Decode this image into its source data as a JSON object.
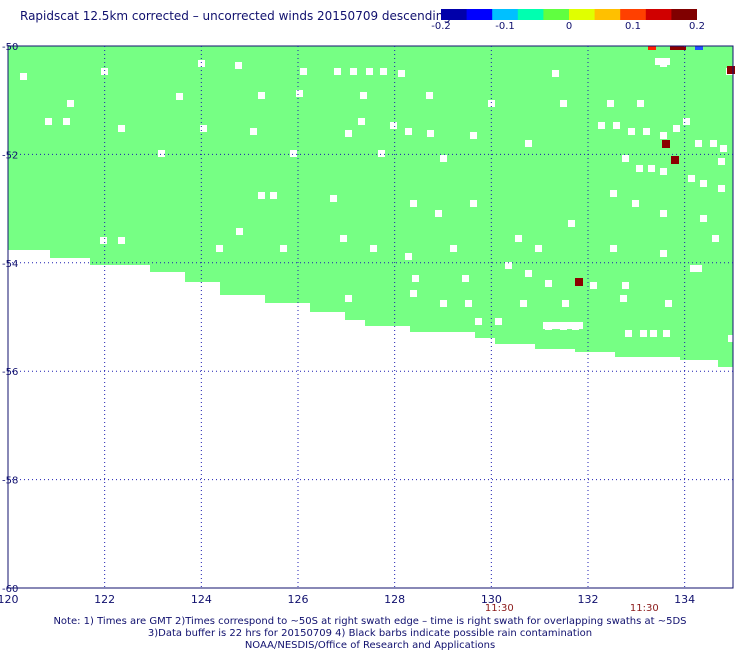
{
  "title": "Rapidscat 12.5km corrected – uncorrected winds 20150709 descending",
  "colorbar": {
    "ticks": [
      "-0.2",
      "-0.1",
      "0",
      "0.1",
      "0.2"
    ],
    "range": [
      -0.2,
      0.2
    ],
    "colors": [
      "#0000aa",
      "#0000ff",
      "#00c0ff",
      "#00ffb0",
      "#60ff40",
      "#e0ff00",
      "#ffc000",
      "#ff4000",
      "#d00000",
      "#800000"
    ]
  },
  "map": {
    "lon_ticks": [
      "120",
      "122",
      "124",
      "126",
      "128",
      "130",
      "132",
      "134"
    ],
    "lat_ticks": [
      "-50",
      "-52",
      "-54",
      "-56",
      "-58",
      "-60"
    ],
    "lon_range": [
      120,
      135
    ],
    "lat_range": [
      -60,
      -50
    ],
    "time_labels": [
      {
        "text": "11:30",
        "lon": 130
      },
      {
        "text": "11:30",
        "lon": 133
      }
    ],
    "swath_color": "#76ff84",
    "grid_color": "#1c1cb0"
  },
  "notes": {
    "line1": "Note: 1) Times are GMT 2)Times correspond to ~50S at right swath edge – time is right swath for overlapping swaths at ~5DS",
    "line2": "3)Data buffer is 22 hrs for 20150709 4) Black barbs indicate possible rain contamination",
    "line3": "NOAA/NESDIS/Office of Research and Applications"
  }
}
